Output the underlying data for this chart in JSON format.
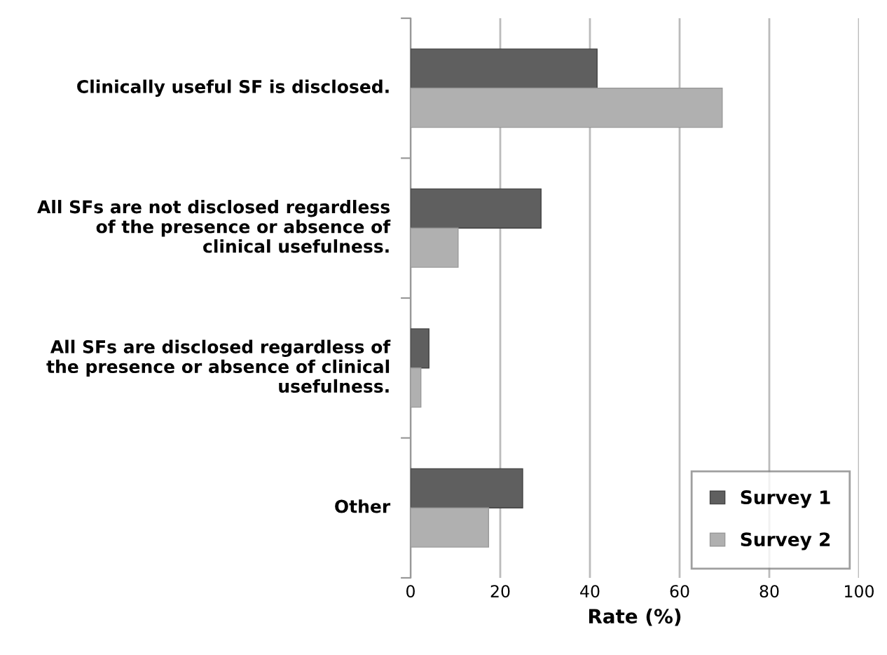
{
  "chart_data": {
    "type": "bar",
    "orientation": "horizontal",
    "xlabel": "Rate (%)",
    "categories": [
      "Clinically useful SF is disclosed.",
      "All SFs are not disclosed regardless of the presence or absence of clinical usefulness.",
      "All SFs are disclosed regardless of the presence or absence of clinical usefulness.",
      "Other"
    ],
    "series": [
      {
        "name": "Survey 1",
        "color": "#5f5f5f",
        "values": [
          41.6,
          29.1,
          4.1,
          25.0
        ]
      },
      {
        "name": "Survey 2",
        "color": "#b0b0b0",
        "values": [
          69.5,
          10.6,
          2.3,
          17.4
        ]
      }
    ],
    "xlim": [
      0,
      100
    ],
    "xticks": [
      0,
      20,
      40,
      60,
      80,
      100
    ],
    "grid": "x",
    "legend": "bottom right"
  }
}
